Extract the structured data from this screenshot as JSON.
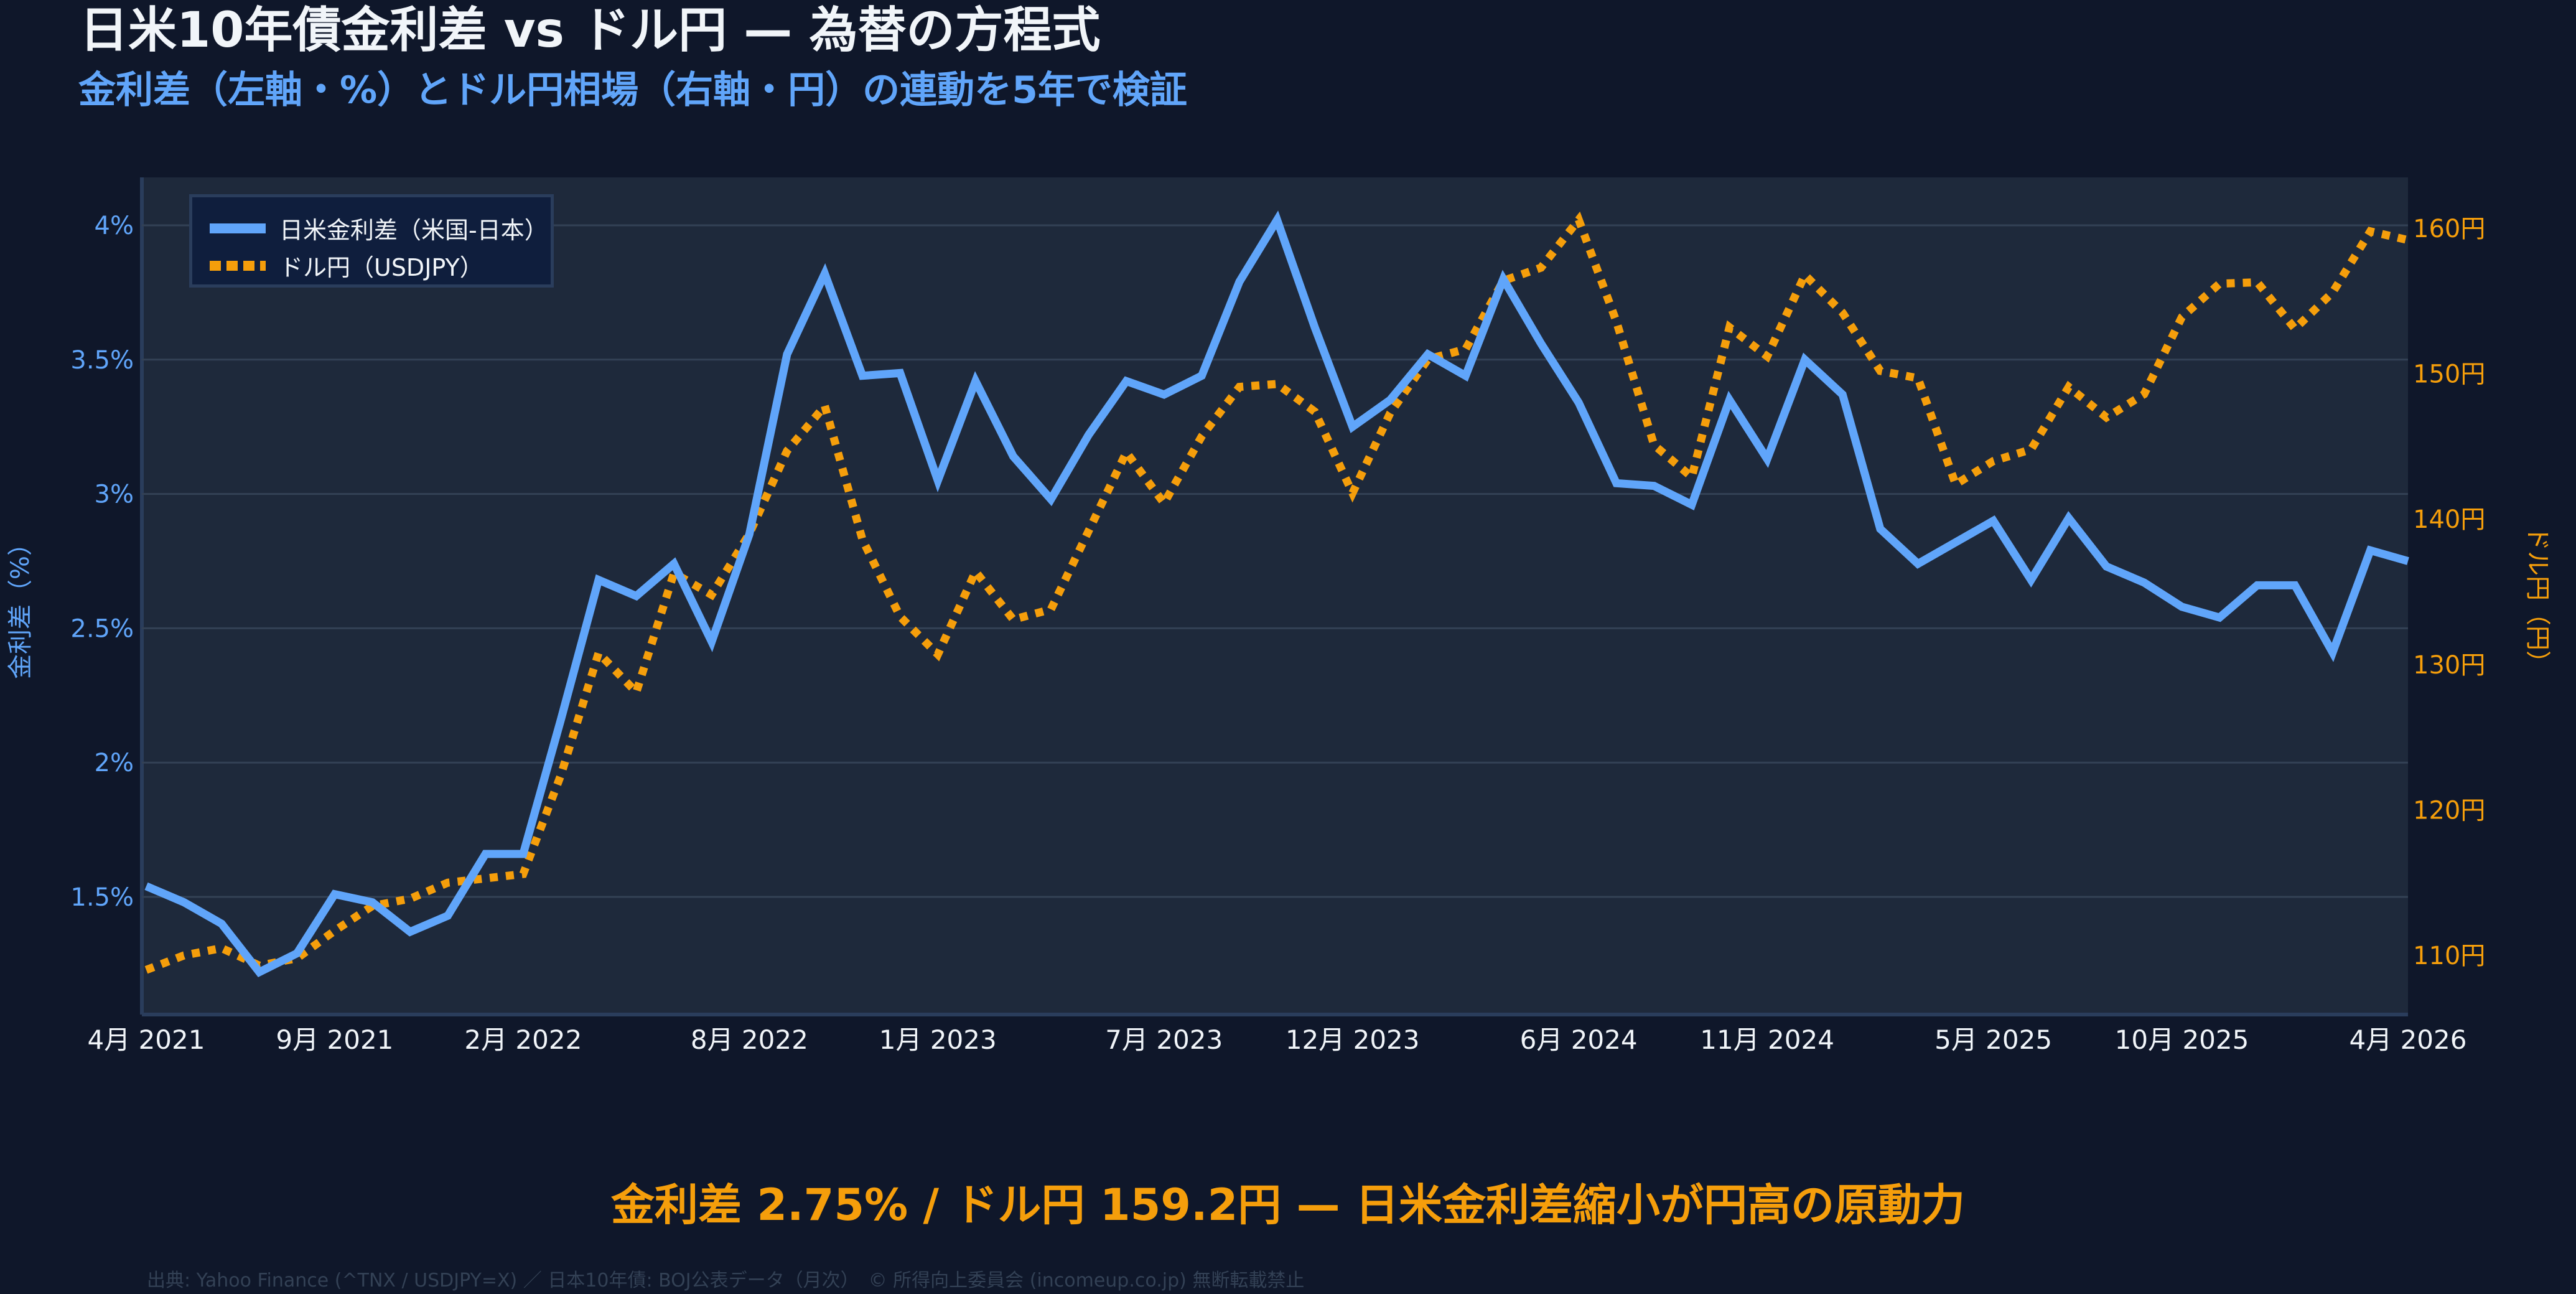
{
  "header": {
    "title": "日米10年債金利差 vs ドル円 — 為替の方程式",
    "subtitle": "金利差（左軸・%）とドル円相場（右軸・円）の連動を5年で検証"
  },
  "legend": {
    "items": [
      {
        "label": "日米金利差（米国-日本）",
        "style": "solid",
        "color": "#60a5fa"
      },
      {
        "label": "ドル円（USDJPY）",
        "style": "dotted",
        "color": "#f59e0b"
      }
    ]
  },
  "colors": {
    "background": "#0f172a",
    "plot_background": "#1e293b",
    "grid": "#334155",
    "spread": "#60a5fa",
    "usdjpy": "#f59e0b",
    "title": "#f1f5f9"
  },
  "headline": "金利差 2.75% / ドル円 159.2円 — 日米金利差縮小が円高の原動力",
  "footer": "出典: Yahoo Finance (^TNX / USDJPY=X) ／ 日本10年債: BOJ公表データ（月次）　© 所得向上委員会 (incomeup.co.jp) 無断転載禁止",
  "chart_data": {
    "type": "line",
    "title": "日米10年債金利差 vs ドル円 — 為替の方程式",
    "subtitle": "金利差（左軸・%）とドル円相場（右軸・円）の連動を5年で検証",
    "xlabel": "",
    "ylabel": "金利差（%）",
    "y2label": "ドル円（円）",
    "ylim": [
      1.05,
      4.15
    ],
    "y2lim": [
      103.9,
      163.0
    ],
    "yticks": [
      1.5,
      2,
      2.5,
      3,
      3.5,
      4
    ],
    "ytick_labels": [
      "1.5%",
      "2%",
      "2.5%",
      "3%",
      "3.5%",
      "4%"
    ],
    "y2ticks": [
      110,
      120,
      130,
      140,
      150,
      160
    ],
    "y2tick_labels": [
      "110円",
      "120円",
      "130円",
      "140円",
      "150円",
      "160円"
    ],
    "xtick_labels": [
      "4月 2021",
      "9月 2021",
      "2月 2022",
      "8月 2022",
      "1月 2023",
      "7月 2023",
      "12月 2023",
      "6月 2024",
      "11月 2024",
      "5月 2025",
      "10月 2025",
      "4月 2026"
    ],
    "xtick_index": [
      0,
      5,
      10,
      16,
      21,
      27,
      32,
      38,
      43,
      49,
      54,
      60
    ],
    "grid": true,
    "legend_position": "upper left",
    "x_start": "2021-04",
    "x_frequency": "monthly",
    "series": [
      {
        "name": "日米金利差（米国-日本）",
        "axis": "left",
        "unit": "%",
        "values": [
          1.54,
          1.48,
          1.4,
          1.22,
          1.29,
          1.51,
          1.48,
          1.37,
          1.43,
          1.66,
          1.66,
          2.16,
          2.68,
          2.62,
          2.74,
          2.45,
          2.85,
          3.52,
          3.82,
          3.44,
          3.45,
          3.05,
          3.42,
          3.14,
          2.98,
          3.22,
          3.42,
          3.37,
          3.44,
          3.79,
          4.02,
          3.62,
          3.25,
          3.35,
          3.52,
          3.44,
          3.8,
          3.56,
          3.34,
          3.04,
          3.03,
          2.96,
          3.35,
          3.13,
          3.5,
          3.37,
          2.87,
          2.74,
          2.82,
          2.9,
          2.68,
          2.91,
          2.73,
          2.67,
          2.58,
          2.54,
          2.66,
          2.66,
          2.41,
          2.79,
          2.75
        ]
      },
      {
        "name": "ドル円（USDJPY）",
        "axis": "right",
        "unit": "円",
        "values": [
          109.0,
          110.0,
          110.5,
          109.3,
          109.8,
          111.7,
          113.4,
          113.9,
          115.0,
          115.3,
          115.6,
          122.4,
          130.8,
          128.1,
          136.3,
          134.8,
          139.0,
          144.7,
          147.8,
          138.6,
          133.3,
          130.7,
          136.4,
          133.1,
          133.8,
          139.2,
          144.6,
          141.1,
          145.7,
          149.1,
          149.3,
          147.4,
          141.8,
          147.3,
          151.0,
          151.7,
          156.4,
          157.3,
          160.6,
          153.6,
          145.1,
          142.9,
          153.2,
          151.2,
          156.8,
          154.2,
          150.2,
          149.7,
          142.4,
          144.0,
          144.8,
          149.1,
          147.0,
          148.6,
          153.9,
          156.2,
          156.3,
          153.1,
          155.6,
          159.8,
          159.2
        ]
      }
    ]
  }
}
